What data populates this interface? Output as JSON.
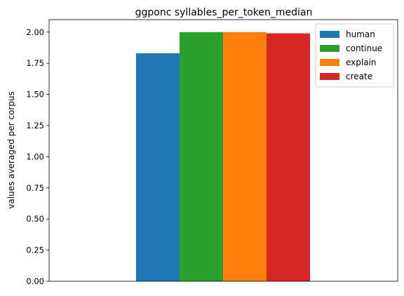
{
  "chart_data": {
    "type": "bar",
    "title": "ggponc syllables_per_token_median",
    "xlabel": "",
    "ylabel": "values averaged per corpus",
    "ylim": [
      0,
      2.1
    ],
    "yticks": [
      "0.00",
      "0.25",
      "0.50",
      "0.75",
      "1.00",
      "1.25",
      "1.50",
      "1.75",
      "2.00"
    ],
    "grid": false,
    "legend_position": "top-right",
    "series": [
      {
        "name": "human",
        "value": 1.83,
        "color": "#1f77b4"
      },
      {
        "name": "continue",
        "value": 2.0,
        "color": "#2ca02c"
      },
      {
        "name": "explain",
        "value": 2.0,
        "color": "#ff7f0e"
      },
      {
        "name": "create",
        "value": 1.99,
        "color": "#d62728"
      }
    ]
  }
}
